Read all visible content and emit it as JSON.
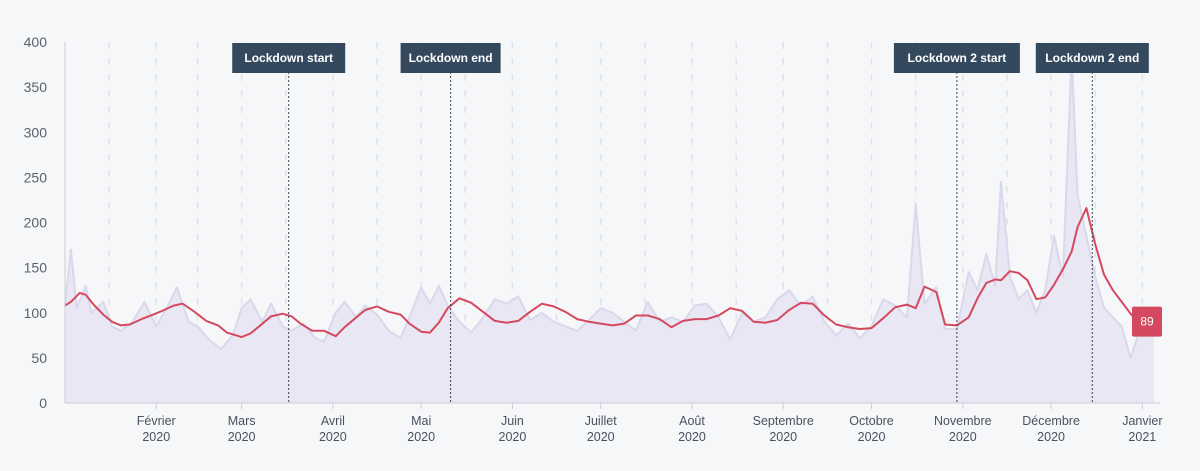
{
  "chart_data": {
    "type": "line",
    "y_ticks": [
      "0",
      "50",
      "100",
      "150",
      "200",
      "250",
      "300",
      "350",
      "400"
    ],
    "ylim": [
      0,
      400
    ],
    "x_range": [
      "2020-01-01",
      "2021-01-07"
    ],
    "x_ticks": [
      {
        "date": "2020-02-01",
        "month": "Février",
        "year": "2020"
      },
      {
        "date": "2020-03-01",
        "month": "Mars",
        "year": "2020"
      },
      {
        "date": "2020-04-01",
        "month": "Avril",
        "year": "2020"
      },
      {
        "date": "2020-05-01",
        "month": "Mai",
        "year": "2020"
      },
      {
        "date": "2020-06-01",
        "month": "Juin",
        "year": "2020"
      },
      {
        "date": "2020-07-01",
        "month": "Juillet",
        "year": "2020"
      },
      {
        "date": "2020-08-01",
        "month": "Août",
        "year": "2020"
      },
      {
        "date": "2020-09-01",
        "month": "Septembre",
        "year": "2020"
      },
      {
        "date": "2020-10-01",
        "month": "Octobre",
        "year": "2020"
      },
      {
        "date": "2020-11-01",
        "month": "Novembre",
        "year": "2020"
      },
      {
        "date": "2020-12-01",
        "month": "Décembre",
        "year": "2020"
      },
      {
        "date": "2021-01-01",
        "month": "Janvier",
        "year": "2021"
      }
    ],
    "annotations": [
      {
        "label": "Lockdown start",
        "date": "2020-03-17"
      },
      {
        "label": "Lockdown end",
        "date": "2020-05-11"
      },
      {
        "label": "Lockdown 2 start",
        "date": "2020-10-30"
      },
      {
        "label": "Lockdown 2 end",
        "date": "2020-12-15"
      }
    ],
    "series": [
      {
        "type": "area",
        "color": "#d9d8ec",
        "points": [
          [
            "2020-01-01",
            108
          ],
          [
            "2020-01-03",
            170
          ],
          [
            "2020-01-05",
            105
          ],
          [
            "2020-01-08",
            130
          ],
          [
            "2020-01-10",
            100
          ],
          [
            "2020-01-14",
            112
          ],
          [
            "2020-01-17",
            85
          ],
          [
            "2020-01-20",
            80
          ],
          [
            "2020-01-24",
            90
          ],
          [
            "2020-01-28",
            112
          ],
          [
            "2020-02-01",
            85
          ],
          [
            "2020-02-05",
            108
          ],
          [
            "2020-02-08",
            128
          ],
          [
            "2020-02-12",
            90
          ],
          [
            "2020-02-15",
            85
          ],
          [
            "2020-02-19",
            70
          ],
          [
            "2020-02-23",
            60
          ],
          [
            "2020-02-27",
            75
          ],
          [
            "2020-03-01",
            105
          ],
          [
            "2020-03-04",
            115
          ],
          [
            "2020-03-08",
            90
          ],
          [
            "2020-03-11",
            110
          ],
          [
            "2020-03-15",
            85
          ],
          [
            "2020-03-18",
            80
          ],
          [
            "2020-03-22",
            88
          ],
          [
            "2020-03-26",
            72
          ],
          [
            "2020-03-29",
            68
          ],
          [
            "2020-04-02",
            100
          ],
          [
            "2020-04-05",
            112
          ],
          [
            "2020-04-09",
            95
          ],
          [
            "2020-04-12",
            108
          ],
          [
            "2020-04-16",
            98
          ],
          [
            "2020-04-20",
            80
          ],
          [
            "2020-04-24",
            72
          ],
          [
            "2020-04-27",
            95
          ],
          [
            "2020-05-01",
            128
          ],
          [
            "2020-05-04",
            110
          ],
          [
            "2020-05-07",
            130
          ],
          [
            "2020-05-10",
            108
          ],
          [
            "2020-05-14",
            90
          ],
          [
            "2020-05-18",
            78
          ],
          [
            "2020-05-22",
            95
          ],
          [
            "2020-05-26",
            115
          ],
          [
            "2020-05-30",
            110
          ],
          [
            "2020-06-03",
            118
          ],
          [
            "2020-06-07",
            92
          ],
          [
            "2020-06-11",
            100
          ],
          [
            "2020-06-15",
            90
          ],
          [
            "2020-06-19",
            85
          ],
          [
            "2020-06-23",
            80
          ],
          [
            "2020-06-27",
            92
          ],
          [
            "2020-07-01",
            105
          ],
          [
            "2020-07-05",
            100
          ],
          [
            "2020-07-09",
            90
          ],
          [
            "2020-07-13",
            80
          ],
          [
            "2020-07-17",
            112
          ],
          [
            "2020-07-21",
            90
          ],
          [
            "2020-07-25",
            95
          ],
          [
            "2020-07-29",
            90
          ],
          [
            "2020-08-02",
            108
          ],
          [
            "2020-08-06",
            110
          ],
          [
            "2020-08-10",
            95
          ],
          [
            "2020-08-14",
            70
          ],
          [
            "2020-08-18",
            100
          ],
          [
            "2020-08-22",
            90
          ],
          [
            "2020-08-26",
            95
          ],
          [
            "2020-08-30",
            115
          ],
          [
            "2020-09-03",
            125
          ],
          [
            "2020-09-07",
            108
          ],
          [
            "2020-09-11",
            118
          ],
          [
            "2020-09-15",
            90
          ],
          [
            "2020-09-19",
            75
          ],
          [
            "2020-09-23",
            88
          ],
          [
            "2020-09-27",
            72
          ],
          [
            "2020-10-01",
            85
          ],
          [
            "2020-10-05",
            115
          ],
          [
            "2020-10-09",
            108
          ],
          [
            "2020-10-13",
            95
          ],
          [
            "2020-10-16",
            220
          ],
          [
            "2020-10-19",
            110
          ],
          [
            "2020-10-23",
            128
          ],
          [
            "2020-10-26",
            82
          ],
          [
            "2020-10-30",
            82
          ],
          [
            "2020-11-03",
            145
          ],
          [
            "2020-11-06",
            125
          ],
          [
            "2020-11-09",
            165
          ],
          [
            "2020-11-12",
            130
          ],
          [
            "2020-11-14",
            245
          ],
          [
            "2020-11-17",
            140
          ],
          [
            "2020-11-20",
            115
          ],
          [
            "2020-11-23",
            125
          ],
          [
            "2020-11-26",
            100
          ],
          [
            "2020-11-29",
            125
          ],
          [
            "2020-12-02",
            185
          ],
          [
            "2020-12-05",
            140
          ],
          [
            "2020-12-08",
            385
          ],
          [
            "2020-12-10",
            230
          ],
          [
            "2020-12-13",
            185
          ],
          [
            "2020-12-16",
            140
          ],
          [
            "2020-12-19",
            105
          ],
          [
            "2020-12-22",
            95
          ],
          [
            "2020-12-25",
            85
          ],
          [
            "2020-12-28",
            50
          ],
          [
            "2021-01-01",
            90
          ],
          [
            "2021-01-05",
            89
          ]
        ]
      },
      {
        "type": "line",
        "color": "#d4495f",
        "points": [
          [
            "2020-01-01",
            108
          ],
          [
            "2020-01-03",
            112
          ],
          [
            "2020-01-06",
            122
          ],
          [
            "2020-01-08",
            120
          ],
          [
            "2020-01-11",
            108
          ],
          [
            "2020-01-14",
            98
          ],
          [
            "2020-01-17",
            90
          ],
          [
            "2020-01-20",
            86
          ],
          [
            "2020-01-23",
            87
          ],
          [
            "2020-01-27",
            93
          ],
          [
            "2020-01-31",
            98
          ],
          [
            "2020-02-03",
            102
          ],
          [
            "2020-02-07",
            108
          ],
          [
            "2020-02-10",
            110
          ],
          [
            "2020-02-14",
            101
          ],
          [
            "2020-02-18",
            91
          ],
          [
            "2020-02-22",
            86
          ],
          [
            "2020-02-25",
            78
          ],
          [
            "2020-03-01",
            73
          ],
          [
            "2020-03-04",
            77
          ],
          [
            "2020-03-07",
            85
          ],
          [
            "2020-03-11",
            96
          ],
          [
            "2020-03-15",
            99
          ],
          [
            "2020-03-18",
            96
          ],
          [
            "2020-03-21",
            88
          ],
          [
            "2020-03-25",
            80
          ],
          [
            "2020-03-29",
            80
          ],
          [
            "2020-04-02",
            74
          ],
          [
            "2020-04-05",
            84
          ],
          [
            "2020-04-09",
            95
          ],
          [
            "2020-04-12",
            103
          ],
          [
            "2020-04-16",
            107
          ],
          [
            "2020-04-20",
            101
          ],
          [
            "2020-04-24",
            98
          ],
          [
            "2020-04-27",
            88
          ],
          [
            "2020-05-01",
            79
          ],
          [
            "2020-05-04",
            78
          ],
          [
            "2020-05-07",
            89
          ],
          [
            "2020-05-10",
            105
          ],
          [
            "2020-05-14",
            116
          ],
          [
            "2020-05-18",
            111
          ],
          [
            "2020-05-22",
            101
          ],
          [
            "2020-05-26",
            91
          ],
          [
            "2020-05-30",
            89
          ],
          [
            "2020-06-03",
            91
          ],
          [
            "2020-06-07",
            101
          ],
          [
            "2020-06-11",
            110
          ],
          [
            "2020-06-15",
            107
          ],
          [
            "2020-06-19",
            101
          ],
          [
            "2020-06-23",
            93
          ],
          [
            "2020-06-27",
            90
          ],
          [
            "2020-07-01",
            88
          ],
          [
            "2020-07-05",
            86
          ],
          [
            "2020-07-09",
            88
          ],
          [
            "2020-07-13",
            97
          ],
          [
            "2020-07-17",
            97
          ],
          [
            "2020-07-21",
            93
          ],
          [
            "2020-07-25",
            84
          ],
          [
            "2020-07-29",
            91
          ],
          [
            "2020-08-02",
            93
          ],
          [
            "2020-08-06",
            93
          ],
          [
            "2020-08-10",
            97
          ],
          [
            "2020-08-14",
            105
          ],
          [
            "2020-08-18",
            102
          ],
          [
            "2020-08-22",
            90
          ],
          [
            "2020-08-26",
            89
          ],
          [
            "2020-08-30",
            92
          ],
          [
            "2020-09-03",
            103
          ],
          [
            "2020-09-07",
            111
          ],
          [
            "2020-09-11",
            110
          ],
          [
            "2020-09-15",
            97
          ],
          [
            "2020-09-19",
            87
          ],
          [
            "2020-09-23",
            84
          ],
          [
            "2020-09-27",
            82
          ],
          [
            "2020-10-01",
            83
          ],
          [
            "2020-10-05",
            94
          ],
          [
            "2020-10-09",
            106
          ],
          [
            "2020-10-13",
            109
          ],
          [
            "2020-10-16",
            105
          ],
          [
            "2020-10-19",
            129
          ],
          [
            "2020-10-23",
            123
          ],
          [
            "2020-10-26",
            87
          ],
          [
            "2020-10-30",
            86
          ],
          [
            "2020-11-03",
            95
          ],
          [
            "2020-11-06",
            116
          ],
          [
            "2020-11-09",
            133
          ],
          [
            "2020-11-12",
            137
          ],
          [
            "2020-11-14",
            136
          ],
          [
            "2020-11-17",
            146
          ],
          [
            "2020-11-20",
            144
          ],
          [
            "2020-11-23",
            136
          ],
          [
            "2020-11-26",
            115
          ],
          [
            "2020-11-29",
            117
          ],
          [
            "2020-12-02",
            131
          ],
          [
            "2020-12-05",
            148
          ],
          [
            "2020-12-08",
            168
          ],
          [
            "2020-12-10",
            195
          ],
          [
            "2020-12-13",
            216
          ],
          [
            "2020-12-16",
            176
          ],
          [
            "2020-12-19",
            142
          ],
          [
            "2020-12-22",
            125
          ],
          [
            "2020-12-25",
            112
          ],
          [
            "2020-12-28",
            99
          ],
          [
            "2021-01-01",
            84
          ],
          [
            "2021-01-05",
            89
          ]
        ]
      }
    ],
    "last_value": {
      "label": "89",
      "value": 89,
      "date": "2021-01-05"
    },
    "grid": "vertical-dashed",
    "colors": {
      "raw_area_fill": "#e9e7f3",
      "raw_line": "#d9d8ec",
      "average_line": "#d4495f",
      "annotation_bg": "#34495e",
      "last_value_bg": "#d4495f"
    }
  }
}
